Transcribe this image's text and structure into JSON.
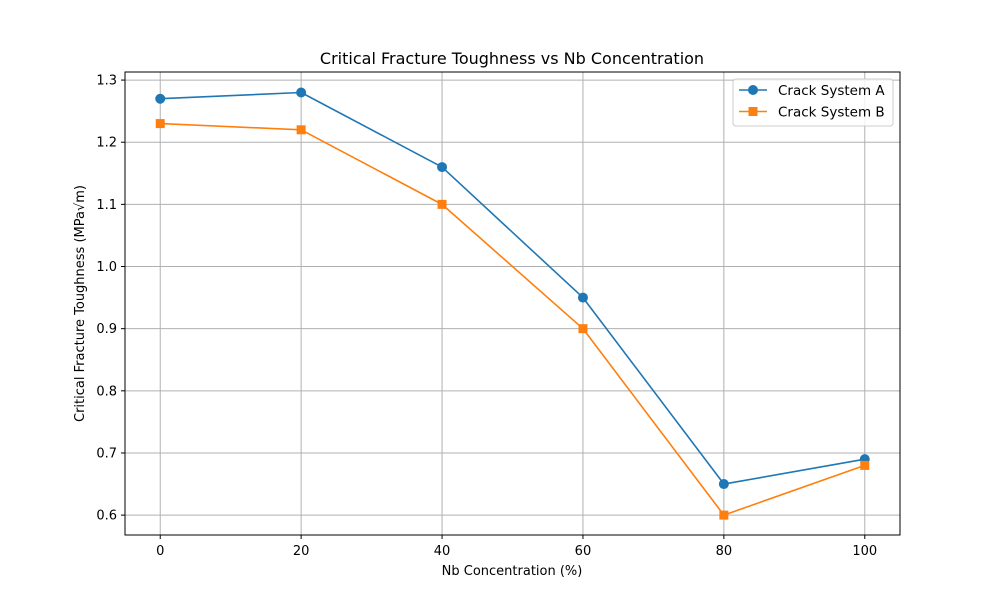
{
  "chart_data": {
    "type": "line",
    "title": "Critical Fracture Toughness vs Nb Concentration",
    "xlabel": "Nb Concentration (%)",
    "ylabel": "Critical Fracture Toughness (MPa√m)",
    "x": [
      0,
      20,
      40,
      60,
      80,
      100
    ],
    "series": [
      {
        "name": "Crack System A",
        "values": [
          1.27,
          1.28,
          1.16,
          0.95,
          0.65,
          0.69
        ],
        "color": "#1f77b4",
        "marker": "circle"
      },
      {
        "name": "Crack System B",
        "values": [
          1.23,
          1.22,
          1.1,
          0.9,
          0.6,
          0.68
        ],
        "color": "#ff7f0e",
        "marker": "square"
      }
    ],
    "xlim": [
      -5,
      105
    ],
    "ylim": [
      0.568,
      1.313
    ],
    "xticks": [
      "0",
      "20",
      "40",
      "60",
      "80",
      "100"
    ],
    "yticks": [
      "0.6",
      "0.7",
      "0.8",
      "0.9",
      "1.0",
      "1.1",
      "1.2",
      "1.3"
    ],
    "grid": true,
    "legend_position": "top-right"
  }
}
